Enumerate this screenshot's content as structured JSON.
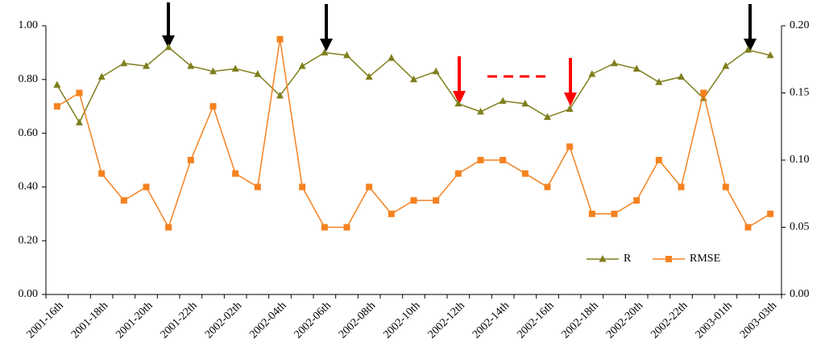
{
  "chart_data": {
    "type": "line",
    "categories": [
      "2001-16th",
      null,
      "2001-18th",
      null,
      "2001-20th",
      null,
      "2001-22th",
      null,
      "2002-02th",
      null,
      "2002-04th",
      null,
      "2002-06th",
      null,
      "2002-08th",
      null,
      "2002-10th",
      null,
      "2002-12th",
      null,
      "2002-14th",
      null,
      "2002-16th",
      null,
      "2002-18th",
      null,
      "2002-20th",
      null,
      "2002-22th",
      null,
      "2003-01th",
      null,
      "2003-03th"
    ],
    "series": [
      {
        "name": "R",
        "color": "#7f7f1e",
        "marker": "triangle",
        "values": [
          0.78,
          0.64,
          0.81,
          0.86,
          0.85,
          0.92,
          0.85,
          0.83,
          0.84,
          0.82,
          0.74,
          0.85,
          0.9,
          0.89,
          0.81,
          0.88,
          0.8,
          0.83,
          0.71,
          0.68,
          0.72,
          0.71,
          0.66,
          0.69,
          0.82,
          0.86,
          0.84,
          0.79,
          0.81,
          0.73,
          0.85,
          0.91,
          0.89
        ]
      },
      {
        "name": "RMSE",
        "color": "#f58220",
        "marker": "square",
        "axis": "y2",
        "values": [
          0.14,
          0.15,
          0.09,
          0.07,
          0.08,
          0.05,
          0.1,
          0.14,
          0.09,
          0.08,
          0.19,
          0.08,
          0.05,
          0.05,
          0.08,
          0.06,
          0.07,
          0.07,
          0.09,
          0.1,
          0.1,
          0.09,
          0.08,
          0.11,
          0.06,
          0.06,
          0.07,
          0.1,
          0.08,
          0.15,
          0.08,
          0.05,
          0.06
        ]
      }
    ],
    "ylim": [
      0,
      1
    ],
    "yticks": [
      {
        "value": 0,
        "label": "0.00"
      },
      {
        "value": 0.2,
        "label": "0.20"
      },
      {
        "value": 0.4,
        "label": "0.40"
      },
      {
        "value": 0.6,
        "label": "0.60"
      },
      {
        "value": 0.8,
        "label": "0.80"
      },
      {
        "value": 1,
        "label": "1.00"
      }
    ],
    "y2lim": [
      0,
      0.2
    ],
    "y2ticks": [
      {
        "value": 0,
        "label": "0.00"
      },
      {
        "value": 0.05,
        "label": "0.05"
      },
      {
        "value": 0.1,
        "label": "0.10"
      },
      {
        "value": 0.15,
        "label": "0.15"
      },
      {
        "value": 0.2,
        "label": "0.20"
      }
    ],
    "grid": false,
    "legend": "bottom-right"
  }
}
